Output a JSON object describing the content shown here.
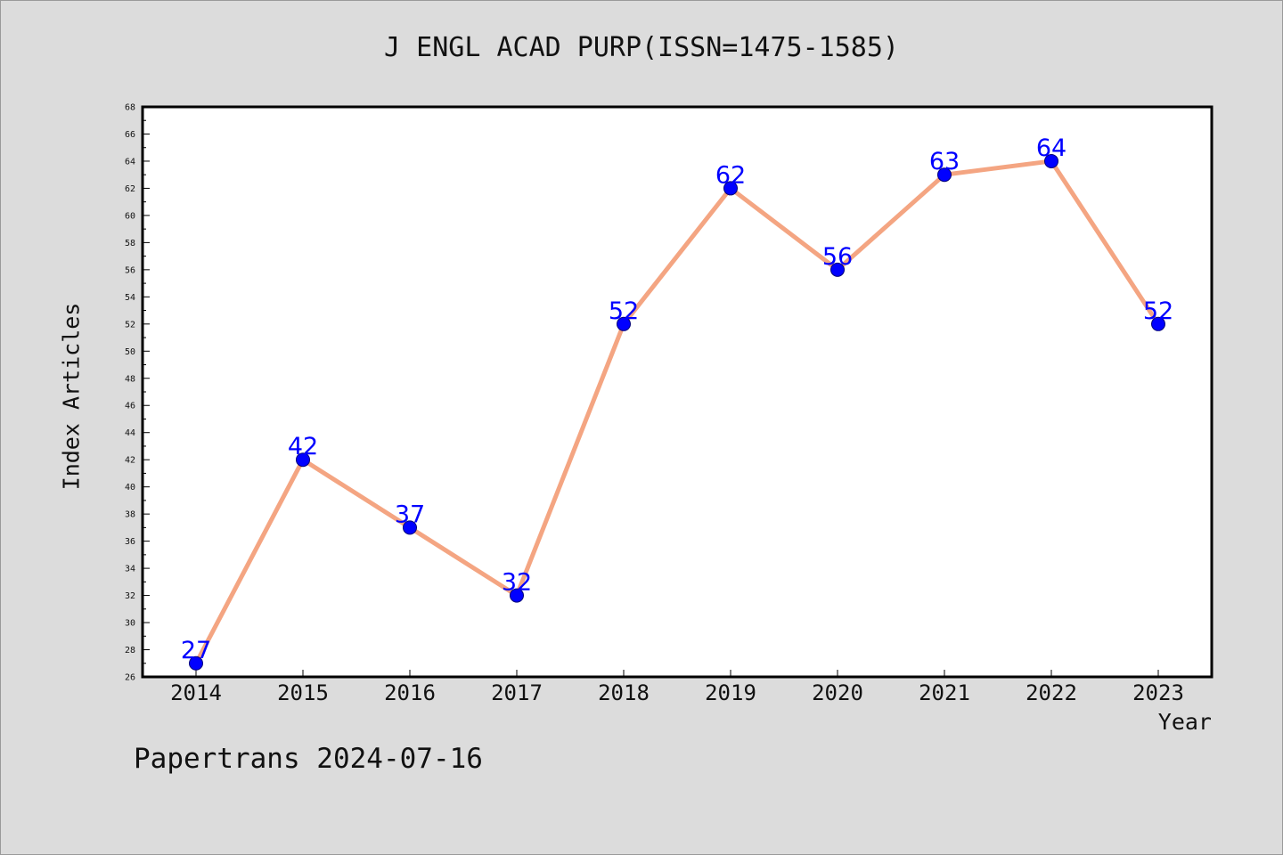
{
  "chart_data": {
    "type": "line",
    "title": "J ENGL ACAD PURP(ISSN=1475-1585)",
    "xlabel": "Year",
    "ylabel": "Index Articles",
    "categories": [
      "2014",
      "2015",
      "2016",
      "2017",
      "2018",
      "2019",
      "2020",
      "2021",
      "2022",
      "2023"
    ],
    "series": [
      {
        "values": [
          27,
          42,
          37,
          32,
          52,
          62,
          56,
          63,
          64,
          52
        ]
      }
    ],
    "data_labels": [
      "27",
      "42",
      "37",
      "32",
      "52",
      "62",
      "56",
      "63",
      "64",
      "52"
    ],
    "ylim": [
      26,
      68
    ],
    "y_ticks": [
      "26",
      "28",
      "30",
      "32",
      "34",
      "36",
      "38",
      "40",
      "42",
      "44",
      "46",
      "48",
      "50",
      "52",
      "54",
      "56",
      "58",
      "60",
      "62",
      "64",
      "66",
      "68"
    ],
    "grid": false,
    "colors": {
      "line": "#f4a582",
      "marker": "#0000ff",
      "label": "#0000ff",
      "background": "#dcdcdc",
      "plot_area": "#ffffff"
    }
  },
  "footer": "Papertrans 2024-07-16"
}
